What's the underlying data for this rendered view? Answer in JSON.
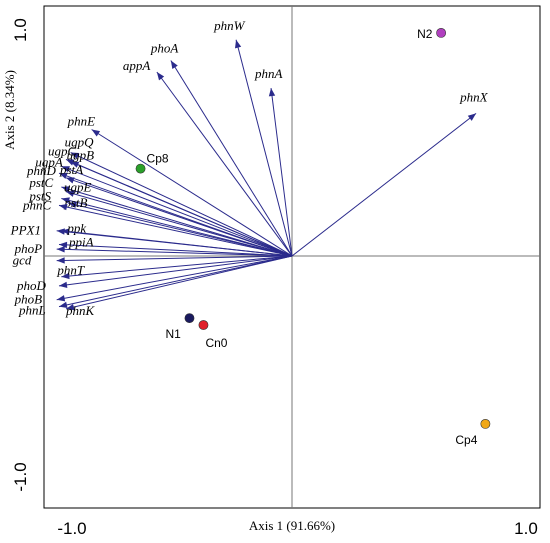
{
  "chart_data": {
    "type": "scatter",
    "subtype": "biplot",
    "xlabel": "Axis 1 (91.66%)",
    "ylabel": "Axis 2 (8.34%)",
    "xlim": [
      -1.05,
      1.05
    ],
    "ylim": [
      -1.08,
      1.05
    ],
    "xticks": [
      {
        "v": -1.0,
        "label": "-1.0"
      },
      {
        "v": 1.0,
        "label": "1.0"
      }
    ],
    "yticks": [
      {
        "v": -1.0,
        "label": "-1.0"
      },
      {
        "v": 1.0,
        "label": "1.0"
      }
    ],
    "arrow_color": "#2b2b8c",
    "vectors": [
      {
        "name": "phnW",
        "x": -0.24,
        "y": 0.94
      },
      {
        "name": "phoA",
        "x": -0.52,
        "y": 0.85
      },
      {
        "name": "appA",
        "x": -0.58,
        "y": 0.8
      },
      {
        "name": "phnA",
        "x": -0.09,
        "y": 0.73
      },
      {
        "name": "phnX",
        "x": 0.79,
        "y": 0.62
      },
      {
        "name": "phnE",
        "x": -0.86,
        "y": 0.55
      },
      {
        "name": "ugpQ",
        "x": -0.95,
        "y": 0.45
      },
      {
        "name": "ugpC",
        "x": -0.97,
        "y": 0.42
      },
      {
        "name": "ugpB",
        "x": -0.95,
        "y": 0.41
      },
      {
        "name": "ugpA",
        "x": -0.99,
        "y": 0.39
      },
      {
        "name": "phnD",
        "x": -1.0,
        "y": 0.36
      },
      {
        "name": "pstA",
        "x": -0.97,
        "y": 0.34
      },
      {
        "name": "pstC",
        "x": -0.99,
        "y": 0.3
      },
      {
        "name": "ugpE",
        "x": -0.97,
        "y": 0.28
      },
      {
        "name": "pstS",
        "x": -0.99,
        "y": 0.25
      },
      {
        "name": "pstB",
        "x": -0.96,
        "y": 0.23
      },
      {
        "name": "phnC",
        "x": -1.0,
        "y": 0.22
      },
      {
        "name": "ppk",
        "x": -0.99,
        "y": 0.11
      },
      {
        "name": "PPX1",
        "x": -1.01,
        "y": 0.11
      },
      {
        "name": "ppiA",
        "x": -1.0,
        "y": 0.05
      },
      {
        "name": "phoP",
        "x": -1.01,
        "y": 0.03
      },
      {
        "name": "gcd",
        "x": -1.01,
        "y": -0.02
      },
      {
        "name": "phnT",
        "x": -0.99,
        "y": -0.09
      },
      {
        "name": "phoD",
        "x": -1.0,
        "y": -0.13
      },
      {
        "name": "phnK",
        "x": -0.97,
        "y": -0.23
      },
      {
        "name": "phoB",
        "x": -1.01,
        "y": -0.19
      },
      {
        "name": "phnL",
        "x": -1.0,
        "y": -0.22
      }
    ],
    "sites": [
      {
        "name": "N2",
        "x": 0.64,
        "y": 0.97,
        "color": "#b03fbf"
      },
      {
        "name": "Cp8",
        "x": -0.65,
        "y": 0.38,
        "color": "#2aa02a"
      },
      {
        "name": "N1",
        "x": -0.44,
        "y": -0.27,
        "color": "#1a1a5e"
      },
      {
        "name": "Cn0",
        "x": -0.38,
        "y": -0.3,
        "color": "#e0202a"
      },
      {
        "name": "Cp4",
        "x": 0.83,
        "y": -0.73,
        "color": "#f0a818"
      }
    ]
  }
}
